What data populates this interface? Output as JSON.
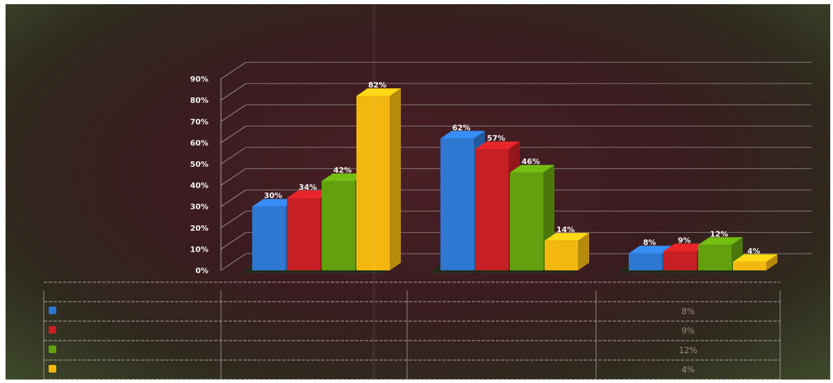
{
  "chart_data": {
    "type": "bar",
    "title": "",
    "xlabel": "",
    "ylabel": "",
    "ylim": [
      0,
      90
    ],
    "yticks": [
      "0%",
      "10%",
      "20%",
      "30%",
      "40%",
      "50%",
      "60%",
      "70%",
      "80%",
      "90%"
    ],
    "grid": true,
    "legend": "table-left",
    "categories": [
      "",
      "",
      ""
    ],
    "series": [
      {
        "color": "#2f78d2",
        "values": [
          30,
          62,
          8
        ],
        "labels": [
          "30%",
          "62%",
          "8%"
        ],
        "table": [
          "",
          "",
          "8%"
        ]
      },
      {
        "color": "#c61f24",
        "values": [
          34,
          57,
          9
        ],
        "labels": [
          "34%",
          "57%",
          "9%"
        ],
        "table": [
          "",
          "",
          "9%"
        ]
      },
      {
        "color": "#62a00f",
        "values": [
          42,
          46,
          12
        ],
        "labels": [
          "42%",
          "46%",
          "12%"
        ],
        "table": [
          "",
          "",
          "12%"
        ]
      },
      {
        "color": "#f2b810",
        "values": [
          82,
          14,
          4
        ],
        "labels": [
          "82%",
          "14%",
          "4%"
        ],
        "table": [
          "",
          "",
          "4%"
        ]
      }
    ]
  }
}
